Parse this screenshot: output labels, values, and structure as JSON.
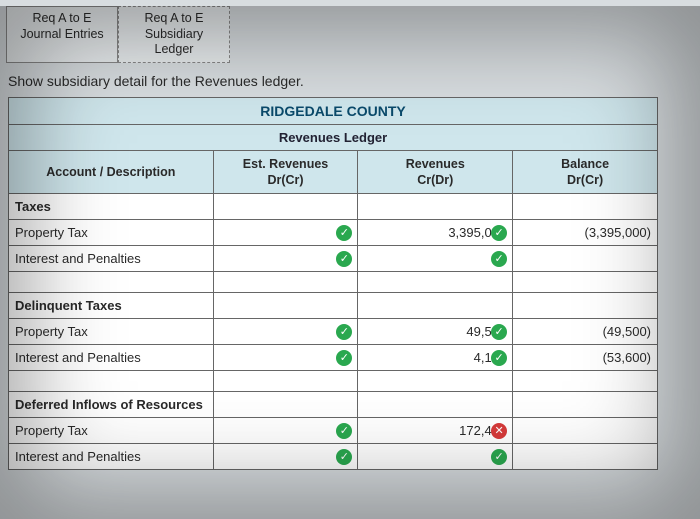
{
  "tabs": [
    {
      "line1": "Req A to E",
      "line2": "Journal Entries"
    },
    {
      "line1": "Req A to E",
      "line2": "Subsidiary",
      "line3": "Ledger"
    }
  ],
  "instruction": "Show subsidiary detail for the Revenues ledger.",
  "ledger": {
    "title": "RIDGEDALE COUNTY",
    "subtitle": "Revenues Ledger",
    "columns": {
      "c0": "Account / Description",
      "c1a": "Est. Revenues",
      "c1b": "Dr(Cr)",
      "c2a": "Revenues",
      "c2b": "Cr(Dr)",
      "c3a": "Balance",
      "c3b": "Dr(Cr)"
    },
    "sections": [
      {
        "label": "Taxes",
        "rows": [
          {
            "label": "Property Tax",
            "est": "0",
            "est_mark": "check",
            "rev": "3,395,000",
            "rev_mark": "check",
            "bal": "(3,395,000)"
          },
          {
            "label": "Interest and Penalties",
            "est": "0",
            "est_mark": "check",
            "rev": "0",
            "rev_mark": "check",
            "bal": ""
          }
        ]
      },
      {
        "label": "Delinquent Taxes",
        "rows": [
          {
            "label": "Property Tax",
            "est": "0",
            "est_mark": "check",
            "rev": "49,500",
            "rev_mark": "check",
            "bal": "(49,500)"
          },
          {
            "label": "Interest and Penalties",
            "est": "0",
            "est_mark": "check",
            "rev": "4,100",
            "rev_mark": "check",
            "bal": "(53,600)"
          }
        ]
      },
      {
        "label": "Deferred Inflows of Resources",
        "rows": [
          {
            "label": "Property Tax",
            "est": "0",
            "est_mark": "check",
            "rev": "172,450",
            "rev_mark": "cross",
            "bal": ""
          },
          {
            "label": "Interest and Penalties",
            "est": "0",
            "est_mark": "check",
            "rev": "0",
            "rev_mark": "check",
            "bal": ""
          }
        ]
      }
    ]
  },
  "colors": {
    "header_bg": "#cfe6ec",
    "title_color": "#0a4a6b",
    "page_bg": "#d8dde0",
    "check_bg": "#2aa84f",
    "cross_bg": "#d63a3a",
    "border": "#666666"
  }
}
